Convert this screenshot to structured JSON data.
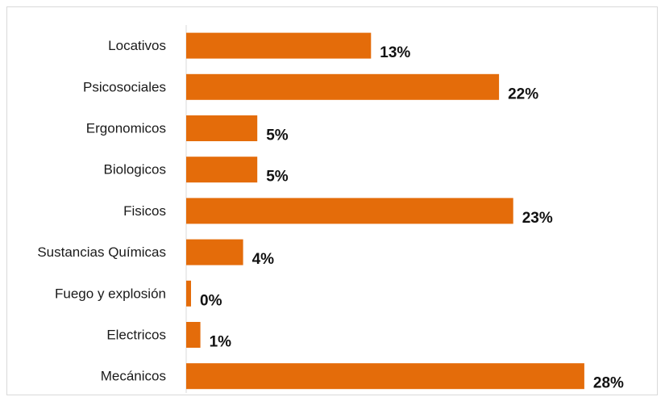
{
  "chart_data": {
    "type": "bar",
    "orientation": "horizontal",
    "categories": [
      "Locativos",
      "Psicosociales",
      "Ergonomicos",
      "Biologicos",
      "Fisicos",
      "Sustancias Químicas",
      "Fuego y explosión",
      "Electricos",
      "Mecánicos"
    ],
    "values": [
      13,
      22,
      5,
      5,
      23,
      4,
      0,
      1,
      28
    ],
    "value_labels": [
      "13%",
      "22%",
      "5%",
      "5%",
      "23%",
      "4%",
      "0%",
      "1%",
      "28%"
    ],
    "unit": "%",
    "xlim": [
      0,
      30
    ],
    "bar_color": "#e46c0a",
    "grid": false,
    "legend": "none"
  }
}
